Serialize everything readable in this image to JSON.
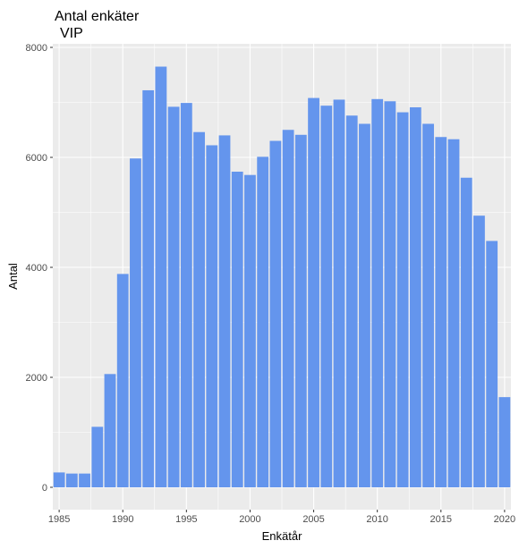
{
  "chart_data": {
    "type": "bar",
    "title": "Antal enkäter",
    "subtitle": "VIP",
    "xlabel": "Enkätår",
    "ylabel": "Antal",
    "x": [
      1985,
      1986,
      1987,
      1988,
      1989,
      1990,
      1991,
      1992,
      1993,
      1994,
      1995,
      1996,
      1997,
      1998,
      1999,
      2000,
      2001,
      2002,
      2003,
      2004,
      2005,
      2006,
      2007,
      2008,
      2009,
      2010,
      2011,
      2012,
      2013,
      2014,
      2015,
      2016,
      2017,
      2018,
      2019,
      2020
    ],
    "values": [
      270,
      250,
      250,
      1100,
      2060,
      3880,
      5980,
      7220,
      7650,
      6920,
      6990,
      6460,
      6220,
      6400,
      5740,
      5680,
      6010,
      6300,
      6500,
      6410,
      7080,
      6940,
      7050,
      6760,
      6610,
      7060,
      7020,
      6820,
      6910,
      6610,
      6370,
      6330,
      5630,
      4940,
      4480,
      1640
    ],
    "xlim": [
      1984.5,
      2020.5
    ],
    "ylim": [
      0,
      8000
    ],
    "x_ticks": [
      1985,
      1990,
      1995,
      2000,
      2005,
      2010,
      2015,
      2020
    ],
    "y_ticks": [
      0,
      2000,
      4000,
      6000,
      8000
    ],
    "bar_color": "#6495ED",
    "panel_background": "#EBEBEB",
    "grid": true,
    "grid_color": "#FFFFFF"
  }
}
